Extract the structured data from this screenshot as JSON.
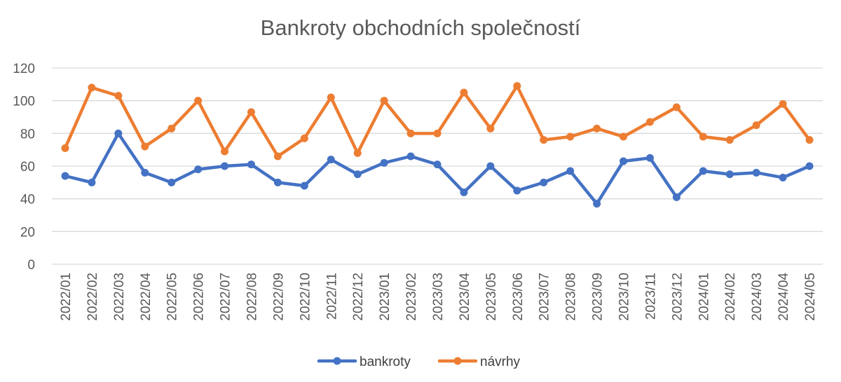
{
  "chart_data": {
    "type": "line",
    "title": "Bankroty obchodních společností",
    "xlabel": "",
    "ylabel": "",
    "ylim": [
      0,
      120
    ],
    "yticks": [
      0,
      20,
      40,
      60,
      80,
      100,
      120
    ],
    "grid": "horizontal",
    "legend": "bottom",
    "categories": [
      "2022/01",
      "2022/02",
      "2022/03",
      "2022/04",
      "2022/05",
      "2022/06",
      "2022/07",
      "2022/08",
      "2022/09",
      "2022/10",
      "2022/11",
      "2022/12",
      "2023/01",
      "2023/02",
      "2023/03",
      "2023/04",
      "2023/05",
      "2023/06",
      "2023/07",
      "2023/08",
      "2023/09",
      "2023/10",
      "2023/11",
      "2023/12",
      "2024/01",
      "2024/02",
      "2024/03",
      "2024/04",
      "2024/05"
    ],
    "series": [
      {
        "name": "bankroty",
        "color": "#4472C4",
        "values": [
          54,
          50,
          80,
          56,
          50,
          58,
          60,
          61,
          50,
          48,
          64,
          55,
          62,
          66,
          61,
          44,
          60,
          45,
          50,
          57,
          37,
          63,
          65,
          41,
          57,
          55,
          56,
          53,
          60
        ]
      },
      {
        "name": "návrhy",
        "color": "#ED7D31",
        "values": [
          71,
          108,
          103,
          72,
          83,
          100,
          69,
          93,
          66,
          77,
          102,
          68,
          100,
          80,
          80,
          105,
          83,
          109,
          76,
          78,
          83,
          78,
          87,
          96,
          78,
          76,
          85,
          98,
          76
        ]
      }
    ]
  }
}
